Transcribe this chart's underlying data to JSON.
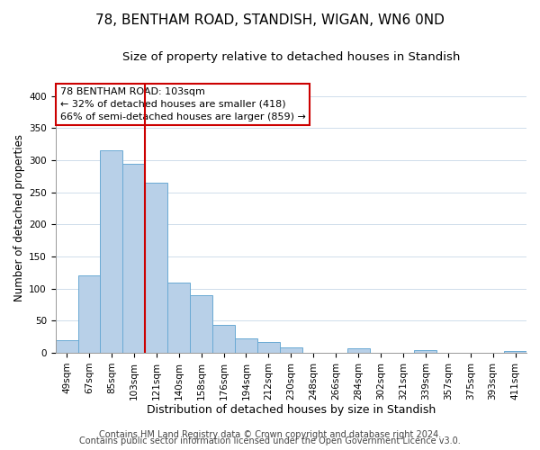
{
  "title": "78, BENTHAM ROAD, STANDISH, WIGAN, WN6 0ND",
  "subtitle": "Size of property relative to detached houses in Standish",
  "xlabel": "Distribution of detached houses by size in Standish",
  "ylabel": "Number of detached properties",
  "bin_labels": [
    "49sqm",
    "67sqm",
    "85sqm",
    "103sqm",
    "121sqm",
    "140sqm",
    "158sqm",
    "176sqm",
    "194sqm",
    "212sqm",
    "230sqm",
    "248sqm",
    "266sqm",
    "284sqm",
    "302sqm",
    "321sqm",
    "339sqm",
    "357sqm",
    "375sqm",
    "393sqm",
    "411sqm"
  ],
  "bar_values": [
    20,
    120,
    315,
    295,
    265,
    110,
    90,
    44,
    22,
    17,
    9,
    0,
    0,
    7,
    0,
    0,
    5,
    0,
    0,
    0,
    3
  ],
  "bar_color": "#b8d0e8",
  "bar_edge_color": "#6aaad4",
  "vline_x_index": 3,
  "vline_color": "#cc0000",
  "annotation_title": "78 BENTHAM ROAD: 103sqm",
  "annotation_line1": "← 32% of detached houses are smaller (418)",
  "annotation_line2": "66% of semi-detached houses are larger (859) →",
  "annotation_box_color": "#ffffff",
  "annotation_box_edge": "#cc0000",
  "footer1": "Contains HM Land Registry data © Crown copyright and database right 2024.",
  "footer2": "Contains public sector information licensed under the Open Government Licence v3.0.",
  "ylim": [
    0,
    420
  ],
  "yticks": [
    0,
    50,
    100,
    150,
    200,
    250,
    300,
    350,
    400
  ],
  "title_fontsize": 11,
  "subtitle_fontsize": 9.5,
  "xlabel_fontsize": 9,
  "ylabel_fontsize": 8.5,
  "tick_fontsize": 7.5,
  "footer_fontsize": 7,
  "annot_fontsize": 8
}
